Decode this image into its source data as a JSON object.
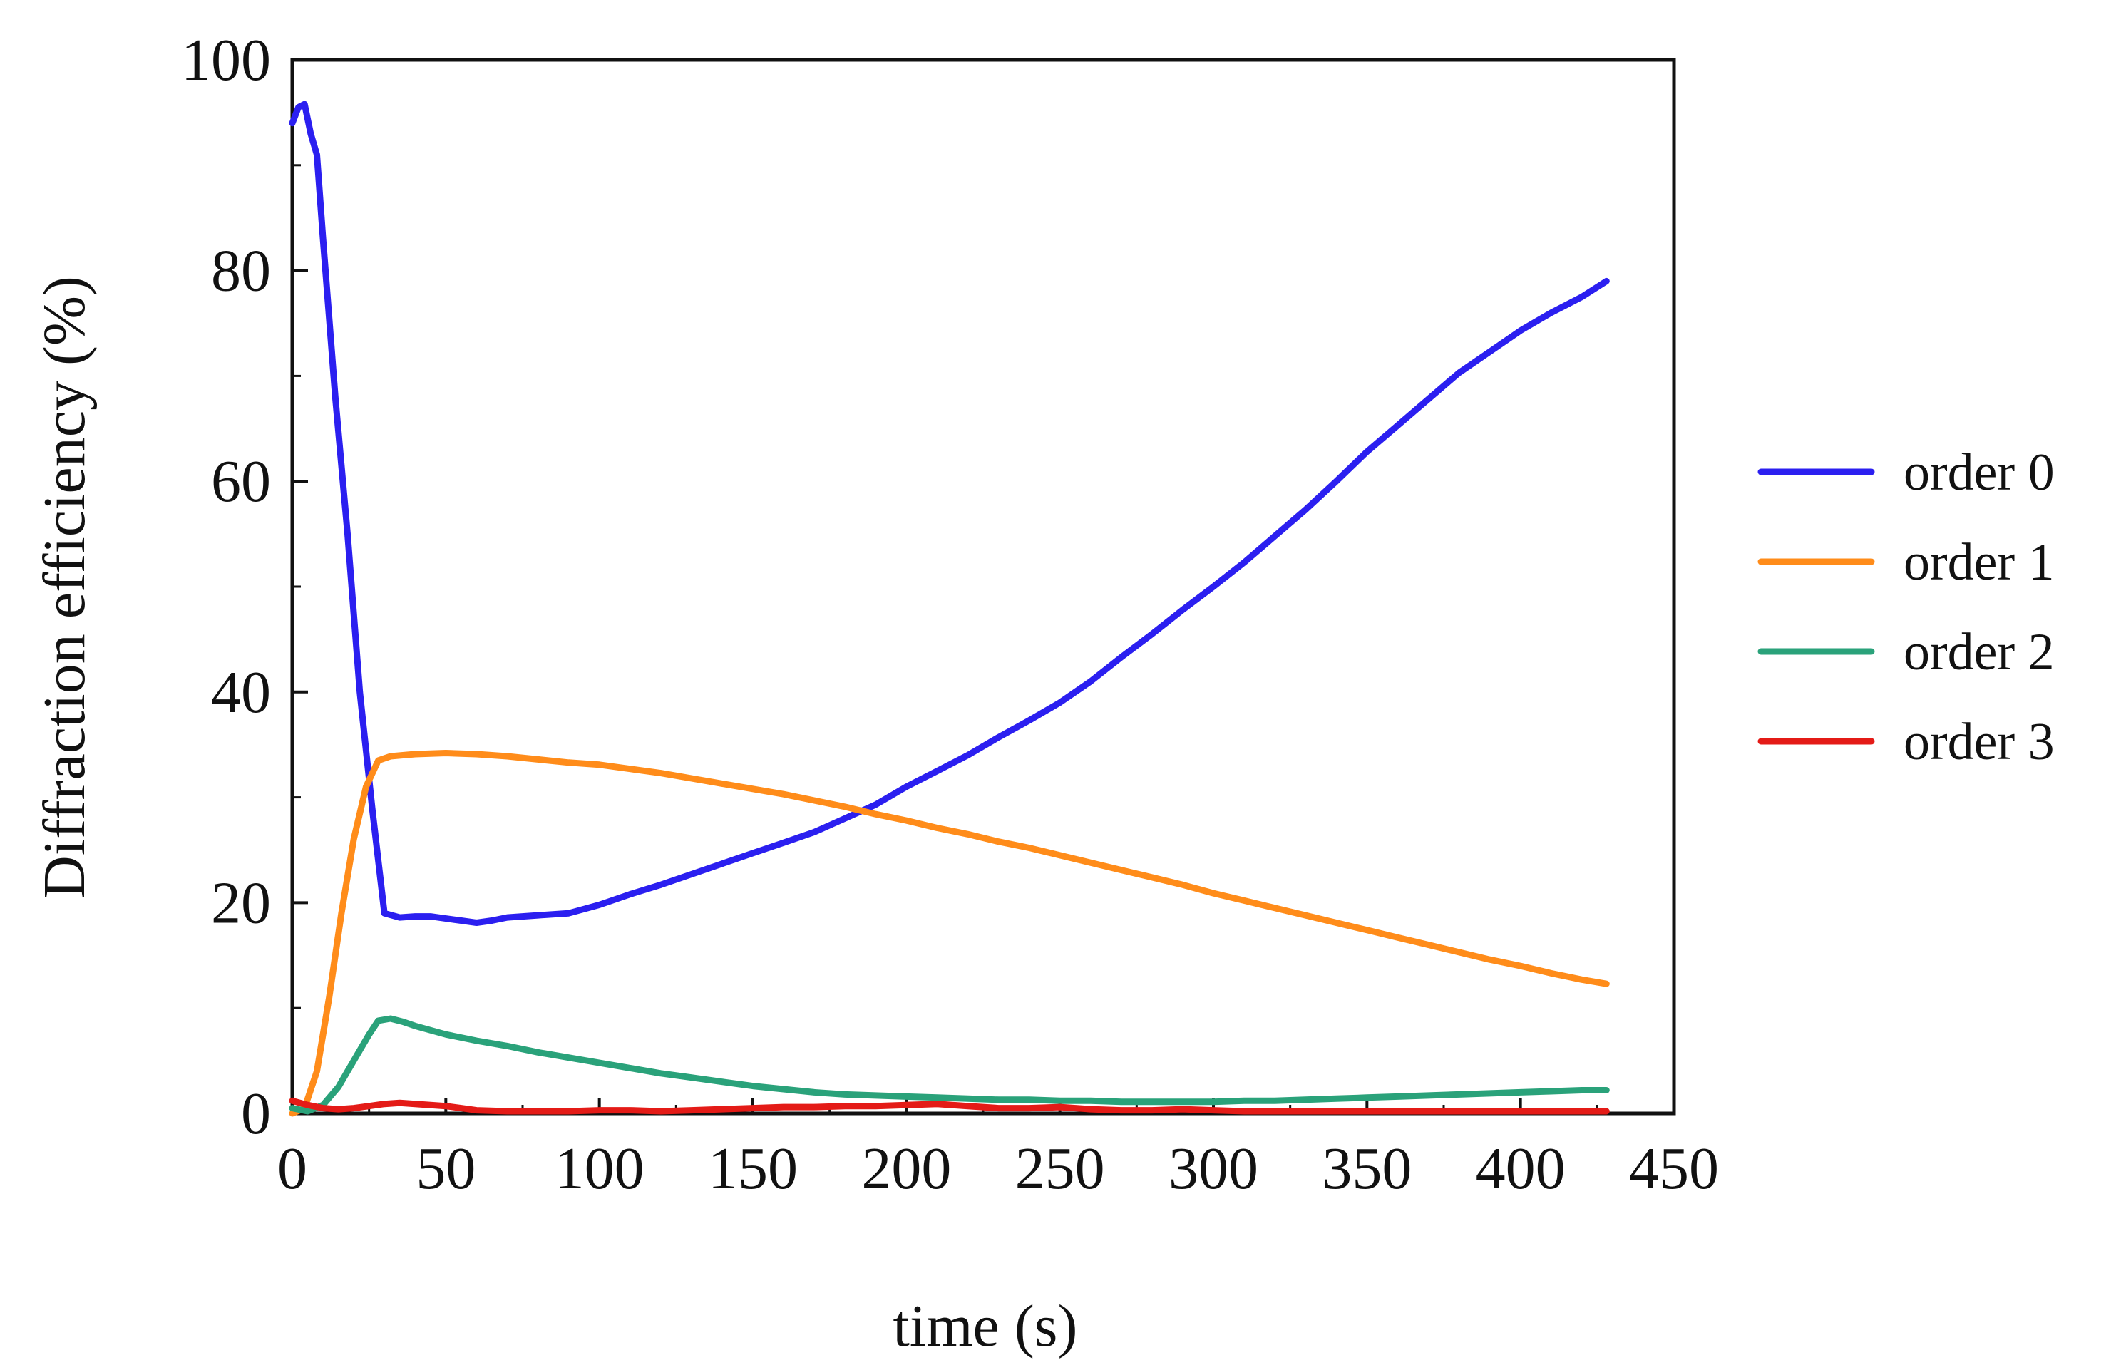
{
  "chart_data": {
    "type": "line",
    "xlabel": "time (s)",
    "ylabel": "Diffraction efficiency (%)",
    "xlim": [
      0,
      450
    ],
    "ylim": [
      0,
      100
    ],
    "xticks": [
      "0",
      "50",
      "100",
      "150",
      "200",
      "250",
      "300",
      "350",
      "400",
      "450"
    ],
    "yticks": [
      "0",
      "20",
      "40",
      "60",
      "80",
      "100"
    ],
    "grid": false,
    "legend": "right",
    "series": [
      {
        "name": "order 0",
        "color": "#2b1ff0",
        "points": [
          [
            0,
            94
          ],
          [
            2,
            95.5
          ],
          [
            4,
            95.8
          ],
          [
            6,
            93
          ],
          [
            8,
            91
          ],
          [
            10,
            83
          ],
          [
            14,
            68
          ],
          [
            18,
            55
          ],
          [
            22,
            40
          ],
          [
            26,
            29
          ],
          [
            30,
            19
          ],
          [
            35,
            18.6
          ],
          [
            40,
            18.7
          ],
          [
            45,
            18.7
          ],
          [
            50,
            18.5
          ],
          [
            55,
            18.3
          ],
          [
            60,
            18.1
          ],
          [
            65,
            18.3
          ],
          [
            70,
            18.6
          ],
          [
            80,
            18.8
          ],
          [
            90,
            19
          ],
          [
            100,
            19.8
          ],
          [
            110,
            20.8
          ],
          [
            120,
            21.7
          ],
          [
            130,
            22.7
          ],
          [
            140,
            23.7
          ],
          [
            150,
            24.7
          ],
          [
            160,
            25.7
          ],
          [
            170,
            26.7
          ],
          [
            180,
            28
          ],
          [
            190,
            29.3
          ],
          [
            200,
            31
          ],
          [
            210,
            32.5
          ],
          [
            220,
            34
          ],
          [
            230,
            35.7
          ],
          [
            240,
            37.3
          ],
          [
            250,
            39
          ],
          [
            260,
            41
          ],
          [
            270,
            43.3
          ],
          [
            280,
            45.5
          ],
          [
            290,
            47.8
          ],
          [
            300,
            50
          ],
          [
            310,
            52.3
          ],
          [
            320,
            54.8
          ],
          [
            330,
            57.3
          ],
          [
            340,
            60
          ],
          [
            350,
            62.8
          ],
          [
            360,
            65.3
          ],
          [
            370,
            67.8
          ],
          [
            380,
            70.3
          ],
          [
            390,
            72.3
          ],
          [
            400,
            74.3
          ],
          [
            410,
            76
          ],
          [
            420,
            77.5
          ],
          [
            428,
            79
          ]
        ]
      },
      {
        "name": "order 1",
        "color": "#ff8c1a",
        "points": [
          [
            0,
            0
          ],
          [
            4,
            0.5
          ],
          [
            8,
            4
          ],
          [
            12,
            11
          ],
          [
            16,
            19
          ],
          [
            20,
            26
          ],
          [
            24,
            31
          ],
          [
            28,
            33.5
          ],
          [
            32,
            33.9
          ],
          [
            40,
            34.1
          ],
          [
            50,
            34.2
          ],
          [
            60,
            34.1
          ],
          [
            70,
            33.9
          ],
          [
            80,
            33.6
          ],
          [
            90,
            33.3
          ],
          [
            100,
            33.1
          ],
          [
            110,
            32.7
          ],
          [
            120,
            32.3
          ],
          [
            130,
            31.8
          ],
          [
            140,
            31.3
          ],
          [
            150,
            30.8
          ],
          [
            160,
            30.3
          ],
          [
            170,
            29.7
          ],
          [
            180,
            29.1
          ],
          [
            190,
            28.4
          ],
          [
            200,
            27.8
          ],
          [
            210,
            27.1
          ],
          [
            220,
            26.5
          ],
          [
            230,
            25.8
          ],
          [
            240,
            25.2
          ],
          [
            250,
            24.5
          ],
          [
            260,
            23.8
          ],
          [
            270,
            23.1
          ],
          [
            280,
            22.4
          ],
          [
            290,
            21.7
          ],
          [
            300,
            20.9
          ],
          [
            310,
            20.2
          ],
          [
            320,
            19.5
          ],
          [
            330,
            18.8
          ],
          [
            340,
            18.1
          ],
          [
            350,
            17.4
          ],
          [
            360,
            16.7
          ],
          [
            370,
            16
          ],
          [
            380,
            15.3
          ],
          [
            390,
            14.6
          ],
          [
            400,
            14
          ],
          [
            410,
            13.3
          ],
          [
            420,
            12.7
          ],
          [
            428,
            12.3
          ]
        ]
      },
      {
        "name": "order 2",
        "color": "#2aa27a",
        "points": [
          [
            0,
            0.5
          ],
          [
            5,
            0.2
          ],
          [
            10,
            0.8
          ],
          [
            15,
            2.5
          ],
          [
            20,
            5
          ],
          [
            25,
            7.5
          ],
          [
            28,
            8.8
          ],
          [
            32,
            9
          ],
          [
            36,
            8.7
          ],
          [
            40,
            8.3
          ],
          [
            50,
            7.5
          ],
          [
            60,
            6.9
          ],
          [
            70,
            6.4
          ],
          [
            80,
            5.8
          ],
          [
            90,
            5.3
          ],
          [
            100,
            4.8
          ],
          [
            110,
            4.3
          ],
          [
            120,
            3.8
          ],
          [
            130,
            3.4
          ],
          [
            140,
            3.0
          ],
          [
            150,
            2.6
          ],
          [
            160,
            2.3
          ],
          [
            170,
            2
          ],
          [
            180,
            1.8
          ],
          [
            190,
            1.7
          ],
          [
            200,
            1.6
          ],
          [
            210,
            1.5
          ],
          [
            220,
            1.4
          ],
          [
            230,
            1.3
          ],
          [
            240,
            1.3
          ],
          [
            250,
            1.2
          ],
          [
            260,
            1.2
          ],
          [
            270,
            1.1
          ],
          [
            280,
            1.1
          ],
          [
            290,
            1.1
          ],
          [
            300,
            1.1
          ],
          [
            310,
            1.2
          ],
          [
            320,
            1.2
          ],
          [
            330,
            1.3
          ],
          [
            340,
            1.4
          ],
          [
            350,
            1.5
          ],
          [
            360,
            1.6
          ],
          [
            370,
            1.7
          ],
          [
            380,
            1.8
          ],
          [
            390,
            1.9
          ],
          [
            400,
            2
          ],
          [
            410,
            2.1
          ],
          [
            420,
            2.2
          ],
          [
            428,
            2.2
          ]
        ]
      },
      {
        "name": "order 3",
        "color": "#e41b17",
        "points": [
          [
            0,
            1.2
          ],
          [
            5,
            0.8
          ],
          [
            10,
            0.5
          ],
          [
            15,
            0.4
          ],
          [
            20,
            0.5
          ],
          [
            25,
            0.7
          ],
          [
            30,
            0.9
          ],
          [
            35,
            1
          ],
          [
            40,
            0.9
          ],
          [
            45,
            0.8
          ],
          [
            50,
            0.7
          ],
          [
            55,
            0.5
          ],
          [
            60,
            0.3
          ],
          [
            70,
            0.2
          ],
          [
            80,
            0.2
          ],
          [
            90,
            0.2
          ],
          [
            100,
            0.3
          ],
          [
            110,
            0.3
          ],
          [
            120,
            0.2
          ],
          [
            130,
            0.3
          ],
          [
            140,
            0.4
          ],
          [
            150,
            0.5
          ],
          [
            160,
            0.6
          ],
          [
            170,
            0.6
          ],
          [
            180,
            0.7
          ],
          [
            190,
            0.7
          ],
          [
            200,
            0.8
          ],
          [
            210,
            0.9
          ],
          [
            220,
            0.7
          ],
          [
            230,
            0.5
          ],
          [
            240,
            0.5
          ],
          [
            250,
            0.6
          ],
          [
            260,
            0.4
          ],
          [
            270,
            0.3
          ],
          [
            280,
            0.3
          ],
          [
            290,
            0.4
          ],
          [
            300,
            0.3
          ],
          [
            310,
            0.2
          ],
          [
            320,
            0.2
          ],
          [
            330,
            0.2
          ],
          [
            340,
            0.2
          ],
          [
            350,
            0.2
          ],
          [
            360,
            0.2
          ],
          [
            370,
            0.2
          ],
          [
            380,
            0.2
          ],
          [
            390,
            0.2
          ],
          [
            400,
            0.2
          ],
          [
            410,
            0.2
          ],
          [
            420,
            0.2
          ],
          [
            428,
            0.2
          ]
        ]
      }
    ]
  }
}
